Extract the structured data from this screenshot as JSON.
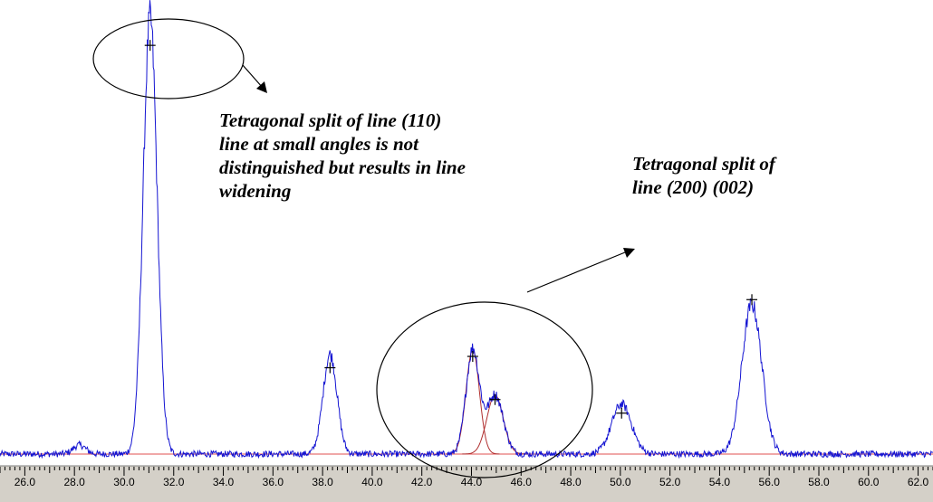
{
  "chart_data": {
    "type": "line",
    "x_tick_labels": [
      "26.0",
      "28.0",
      "30.0",
      "32.0",
      "34.0",
      "36.0",
      "38.0",
      "40.0",
      "42.0",
      "44.0",
      "46.0",
      "48.0",
      "50.0",
      "52.0",
      "54.0",
      "56.0",
      "58.0",
      "60.0",
      "62.0"
    ],
    "xlim": [
      25.0,
      62.6
    ],
    "ylim": [
      0,
      1.0
    ],
    "baseline": 0.02,
    "peaks": [
      {
        "x": 28.2,
        "height": 0.02,
        "width": 0.25
      },
      {
        "x": 31.05,
        "height": 0.96,
        "width": 0.28
      },
      {
        "x": 38.3,
        "height": 0.22,
        "width": 0.28
      },
      {
        "x": 44.05,
        "height": 0.23,
        "width": 0.27
      },
      {
        "x": 44.95,
        "height": 0.13,
        "width": 0.33
      },
      {
        "x": 50.05,
        "height": 0.11,
        "width": 0.4
      },
      {
        "x": 55.3,
        "height": 0.33,
        "width": 0.4
      }
    ],
    "peak_markers": [
      {
        "x": 31.05,
        "y": 0.92
      },
      {
        "x": 38.3,
        "y": 0.21
      },
      {
        "x": 44.05,
        "y": 0.235
      },
      {
        "x": 44.95,
        "y": 0.14
      },
      {
        "x": 50.05,
        "y": 0.11
      },
      {
        "x": 55.3,
        "y": 0.36
      }
    ],
    "fit_components": [
      {
        "x": 44.05,
        "height": 0.23,
        "width": 0.27
      },
      {
        "x": 44.95,
        "height": 0.13,
        "width": 0.33
      }
    ],
    "colors": {
      "trace": "#1414d2",
      "baseline": "#e05050",
      "fit": "#b03030",
      "axis_band": "#d4d0c8",
      "annotation": "#000000"
    },
    "grid": false
  },
  "annotations": {
    "split_110": "Tetragonal split of line (110)\nline at small angles is not\ndistinguished but results in line\nwidening",
    "split_200": "Tetragonal split of\nline (200) (002)"
  }
}
